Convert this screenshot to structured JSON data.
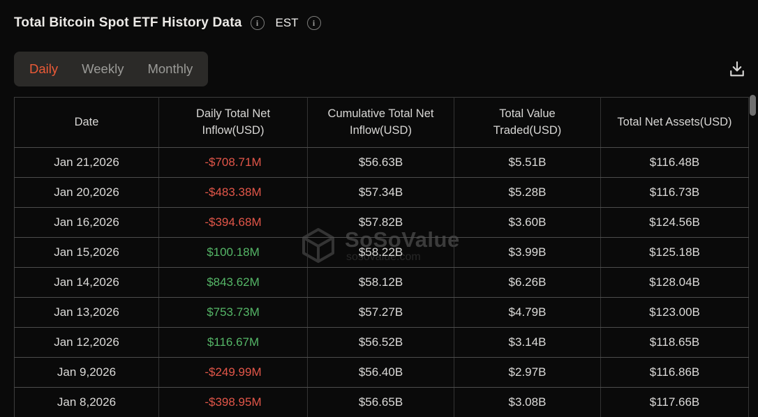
{
  "header": {
    "title": "Total Bitcoin Spot ETF History Data",
    "timezone": "EST"
  },
  "tabs": [
    {
      "id": "daily",
      "label": "Daily",
      "active": true
    },
    {
      "id": "weekly",
      "label": "Weekly",
      "active": false
    },
    {
      "id": "monthly",
      "label": "Monthly",
      "active": false
    }
  ],
  "toolbar": {
    "download_icon": "download-icon"
  },
  "watermark": {
    "logo_icon": "sosovalue-cube-icon",
    "brand": "SoSoValue",
    "domain": "sosovalue.com"
  },
  "table": {
    "columns": [
      "Date",
      "Daily Total Net Inflow(USD)",
      "Cumulative Total Net Inflow(USD)",
      "Total Value Traded(USD)",
      "Total Net Assets(USD)"
    ],
    "rows": [
      {
        "date": "Jan 21,2026",
        "daily_net_inflow": "-$708.71M",
        "direction": "negative",
        "cumulative_net_inflow": "$56.63B",
        "value_traded": "$5.51B",
        "net_assets": "$116.48B"
      },
      {
        "date": "Jan 20,2026",
        "daily_net_inflow": "-$483.38M",
        "direction": "negative",
        "cumulative_net_inflow": "$57.34B",
        "value_traded": "$5.28B",
        "net_assets": "$116.73B"
      },
      {
        "date": "Jan 16,2026",
        "daily_net_inflow": "-$394.68M",
        "direction": "negative",
        "cumulative_net_inflow": "$57.82B",
        "value_traded": "$3.60B",
        "net_assets": "$124.56B"
      },
      {
        "date": "Jan 15,2026",
        "daily_net_inflow": "$100.18M",
        "direction": "positive",
        "cumulative_net_inflow": "$58.22B",
        "value_traded": "$3.99B",
        "net_assets": "$125.18B"
      },
      {
        "date": "Jan 14,2026",
        "daily_net_inflow": "$843.62M",
        "direction": "positive",
        "cumulative_net_inflow": "$58.12B",
        "value_traded": "$6.26B",
        "net_assets": "$128.04B"
      },
      {
        "date": "Jan 13,2026",
        "daily_net_inflow": "$753.73M",
        "direction": "positive",
        "cumulative_net_inflow": "$57.27B",
        "value_traded": "$4.79B",
        "net_assets": "$123.00B"
      },
      {
        "date": "Jan 12,2026",
        "daily_net_inflow": "$116.67M",
        "direction": "positive",
        "cumulative_net_inflow": "$56.52B",
        "value_traded": "$3.14B",
        "net_assets": "$118.65B"
      },
      {
        "date": "Jan 9,2026",
        "daily_net_inflow": "-$249.99M",
        "direction": "negative",
        "cumulative_net_inflow": "$56.40B",
        "value_traded": "$2.97B",
        "net_assets": "$116.86B"
      },
      {
        "date": "Jan 8,2026",
        "daily_net_inflow": "-$398.95M",
        "direction": "negative",
        "cumulative_net_inflow": "$56.65B",
        "value_traded": "$3.08B",
        "net_assets": "$117.66B"
      }
    ]
  },
  "colors": {
    "accent": "#eb5a37",
    "positive": "#55b667",
    "negative": "#e25649",
    "background": "#0a0a0a"
  }
}
